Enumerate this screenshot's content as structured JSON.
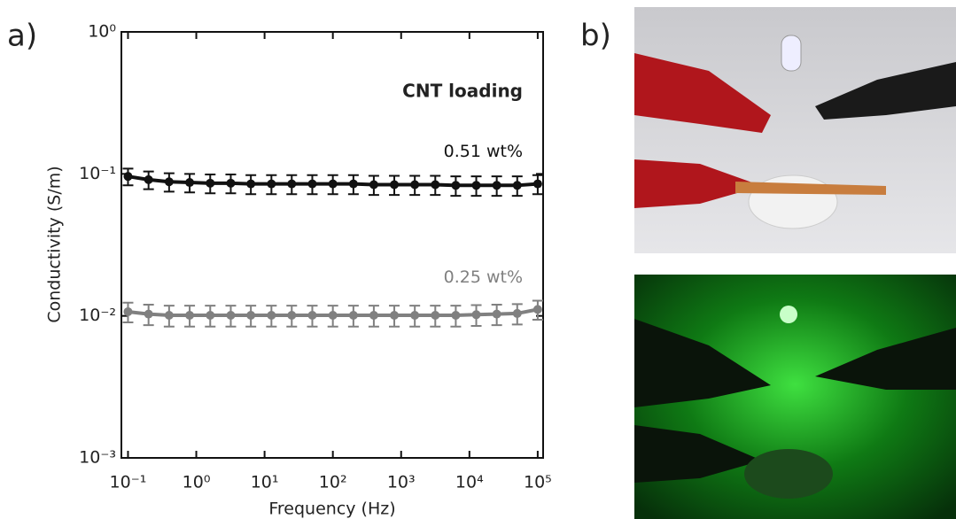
{
  "chart_data": {
    "type": "line",
    "panel_labels": [
      "a)",
      "b)"
    ],
    "xlabel": "Frequency (Hz)",
    "ylabel": "Conductivity (S/m)",
    "legend_title": "CNT loading",
    "log_x": true,
    "log_y": true,
    "xlim": [
      0.08,
      120000
    ],
    "ylim": [
      0.001,
      1
    ],
    "xticks": [
      {
        "value": 0.1,
        "label": "10⁻¹"
      },
      {
        "value": 1,
        "label": "10⁰"
      },
      {
        "value": 10,
        "label": "10¹"
      },
      {
        "value": 100,
        "label": "10²"
      },
      {
        "value": 1000,
        "label": "10³"
      },
      {
        "value": 10000,
        "label": "10⁴"
      },
      {
        "value": 100000,
        "label": "10⁵"
      }
    ],
    "yticks": [
      {
        "value": 0.001,
        "label": "10⁻³"
      },
      {
        "value": 0.01,
        "label": "10⁻²"
      },
      {
        "value": 0.1,
        "label": "10⁻¹"
      },
      {
        "value": 1,
        "label": "10⁰"
      }
    ],
    "x": [
      0.1,
      0.2,
      0.4,
      0.8,
      1.6,
      3.2,
      6.3,
      12.6,
      25,
      50,
      100,
      200,
      398,
      794,
      1585,
      3162,
      6310,
      12589,
      25119,
      50119,
      100000
    ],
    "series": [
      {
        "name": "0.51 wt%",
        "color": "#111111",
        "values": [
          0.096,
          0.091,
          0.088,
          0.087,
          0.086,
          0.086,
          0.085,
          0.085,
          0.085,
          0.085,
          0.085,
          0.085,
          0.084,
          0.084,
          0.084,
          0.084,
          0.083,
          0.083,
          0.083,
          0.083,
          0.085
        ],
        "errors": [
          0.013,
          0.013,
          0.013,
          0.013,
          0.013,
          0.013,
          0.013,
          0.013,
          0.013,
          0.013,
          0.013,
          0.013,
          0.013,
          0.013,
          0.013,
          0.013,
          0.013,
          0.013,
          0.013,
          0.013,
          0.013
        ]
      },
      {
        "name": "0.25 wt%",
        "color": "#808080",
        "values": [
          0.0107,
          0.0103,
          0.0101,
          0.0101,
          0.0101,
          0.0101,
          0.0101,
          0.0101,
          0.0101,
          0.0101,
          0.0101,
          0.0101,
          0.0101,
          0.0101,
          0.0101,
          0.0101,
          0.0101,
          0.0102,
          0.0103,
          0.0104,
          0.0111
        ],
        "errors": [
          0.0017,
          0.0017,
          0.0017,
          0.0017,
          0.0017,
          0.0017,
          0.0017,
          0.0017,
          0.0017,
          0.0017,
          0.0017,
          0.0017,
          0.0017,
          0.0017,
          0.0017,
          0.0017,
          0.0017,
          0.0017,
          0.0017,
          0.0017,
          0.0017
        ]
      }
    ]
  }
}
